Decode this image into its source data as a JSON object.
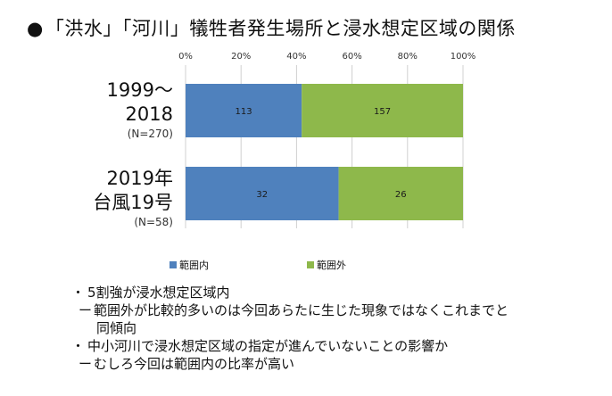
{
  "title": {
    "bullet": "●",
    "text": "「洪水」「河川」犠牲者発生場所と浸水想定区域の関係"
  },
  "colors": {
    "inside": "#4f81bd",
    "outside": "#8eb84b"
  },
  "chart_data": {
    "type": "bar",
    "orientation": "horizontal",
    "stacked": "percent",
    "x_ticks": [
      "0%",
      "20%",
      "40%",
      "60%",
      "80%",
      "100%"
    ],
    "xlim": [
      0,
      100
    ],
    "grid": true,
    "legend_position": "bottom",
    "categories": [
      {
        "line1": "1999～",
        "line2": "2018",
        "n": "(N=270)"
      },
      {
        "line1": "2019年",
        "line2": "台風19号",
        "n": "(N=58)"
      }
    ],
    "series": [
      {
        "name": "範囲内",
        "values": [
          113,
          32
        ],
        "labels": [
          "113",
          "32"
        ]
      },
      {
        "name": "範囲外",
        "values": [
          157,
          26
        ],
        "labels": [
          "157",
          "26"
        ]
      }
    ]
  },
  "notes": [
    {
      "bullet": "・",
      "text": "5割強が浸水想定区域内",
      "subs": [
        {
          "dash": "ー",
          "text": "範囲外が比較的多いのは今回あらたに生じた現象ではなくこれまでと"
        },
        {
          "dash": "",
          "text": "同傾向"
        }
      ]
    },
    {
      "bullet": "・",
      "text": "中小河川で浸水想定区域の指定が進んでいないことの影響か",
      "subs": [
        {
          "dash": "ー",
          "text": "むしろ今回は範囲内の比率が高い"
        }
      ]
    }
  ]
}
